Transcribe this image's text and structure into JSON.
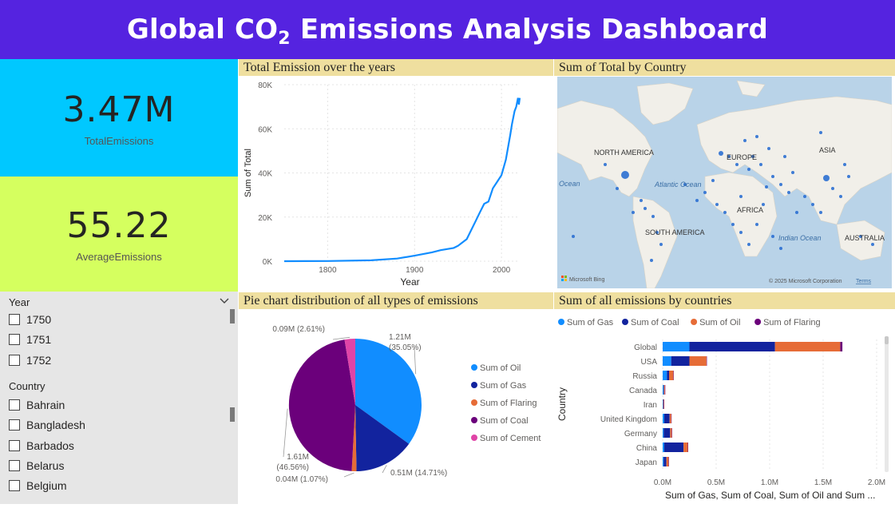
{
  "header": {
    "title_main": "Global CO",
    "title_sub": "2",
    "title_rest": " Emissions Analysis Dashboard"
  },
  "kpis": [
    {
      "value": "3.47M",
      "label": "TotalEmissions"
    },
    {
      "value": "55.22",
      "label": "AverageEmissions"
    }
  ],
  "slicer": {
    "year_header": "Year",
    "years": [
      "1750",
      "1751",
      "1752"
    ],
    "country_header": "Country",
    "countries": [
      "Bahrain",
      "Bangladesh",
      "Barbados",
      "Belarus",
      "Belgium"
    ]
  },
  "colors": {
    "header": "#5523e0",
    "kpi1": "#00c8ff",
    "kpi2": "#d5ff5f",
    "gas": "#118dff",
    "coal": "#12239e",
    "oil": "#e66c37",
    "flaring": "#6b007b",
    "cement": "#e044a7"
  },
  "line_panel": {
    "title": "Total Emission over the years",
    "chart_data": {
      "type": "line",
      "xlabel": "Year",
      "ylabel": "Sum of Total",
      "xticks": [
        "1800",
        "1900",
        "2000"
      ],
      "yticks": [
        "0K",
        "20K",
        "40K",
        "60K",
        "80K"
      ],
      "xlim": [
        1750,
        2021
      ],
      "ylim": [
        0,
        80000
      ],
      "x": [
        1750,
        1800,
        1850,
        1880,
        1900,
        1920,
        1930,
        1945,
        1950,
        1960,
        1970,
        1975,
        1980,
        1985,
        1990,
        1995,
        2000,
        2005,
        2010,
        2012,
        2015,
        2017,
        2019,
        2020,
        2021
      ],
      "y": [
        0,
        80,
        400,
        1200,
        2500,
        4000,
        5000,
        6000,
        7000,
        10000,
        18000,
        22000,
        26000,
        27000,
        33000,
        36000,
        39000,
        46000,
        57000,
        62000,
        68000,
        70000,
        74000,
        71000,
        74000
      ]
    }
  },
  "map_panel": {
    "title": "Sum of Total by Country",
    "labels": {
      "na": "NORTH AMERICA",
      "sa": "SOUTH AMERICA",
      "eu": "EUROPE",
      "asia": "ASIA",
      "africa": "AFRICA",
      "aus": "AUSTRALIA",
      "atl": "Atlantic Ocean",
      "ind": "Indian Ocean",
      "ocean": "Ocean"
    },
    "attribution_left": "Microsoft Bing",
    "attribution_right": "© 2025 Microsoft Corporation",
    "terms": "Terms"
  },
  "pie_panel": {
    "title": "Pie chart distribution of all types of emissions",
    "chart_data": {
      "type": "pie",
      "slices": [
        {
          "name": "Sum of Oil",
          "value": 1.21,
          "label": "1.21M",
          "pct": "(35.05%)",
          "color": "#118dff"
        },
        {
          "name": "Sum of Gas",
          "value": 0.51,
          "label": "0.51M (14.71%)",
          "pct": "",
          "color": "#12239e"
        },
        {
          "name": "Sum of Flaring",
          "value": 0.04,
          "label": "0.04M (1.07%)",
          "pct": "",
          "color": "#e66c37"
        },
        {
          "name": "Sum of Coal",
          "value": 1.61,
          "label": "1.61M",
          "pct": "(46.56%)",
          "color": "#6b007b"
        },
        {
          "name": "Sum of Cement",
          "value": 0.09,
          "label": "0.09M (2.61%)",
          "pct": "",
          "color": "#e044a7"
        }
      ]
    }
  },
  "bar_panel": {
    "title": "Sum of all emissions by countries",
    "chart_data": {
      "type": "bar",
      "orientation": "horizontal",
      "stacked": true,
      "ylabel": "Country",
      "xlabel": "Sum of Gas, Sum of Coal, Sum of Oil and Sum ...",
      "xticks": [
        "0.0M",
        "0.5M",
        "1.0M",
        "1.5M",
        "2.0M"
      ],
      "xlim": [
        0,
        2000000
      ],
      "categories": [
        "Global",
        "USA",
        "Russia",
        "Canada",
        "Iran",
        "United Kingdom",
        "Germany",
        "China",
        "Japan"
      ],
      "series": [
        {
          "name": "Sum of Gas",
          "color": "#118dff",
          "values": [
            250000,
            80000,
            40000,
            8000,
            5000,
            15000,
            10000,
            15000,
            10000
          ]
        },
        {
          "name": "Sum of Coal",
          "color": "#12239e",
          "values": [
            800000,
            170000,
            20000,
            5000,
            1000,
            50000,
            60000,
            180000,
            25000
          ]
        },
        {
          "name": "Sum of Oil",
          "color": "#e66c37",
          "values": [
            610000,
            160000,
            40000,
            8000,
            5000,
            15000,
            15000,
            40000,
            20000
          ]
        },
        {
          "name": "Sum of Flaring",
          "color": "#6b007b",
          "values": [
            20000,
            2000,
            1000,
            500,
            500,
            300,
            200,
            500,
            100
          ]
        }
      ]
    }
  }
}
